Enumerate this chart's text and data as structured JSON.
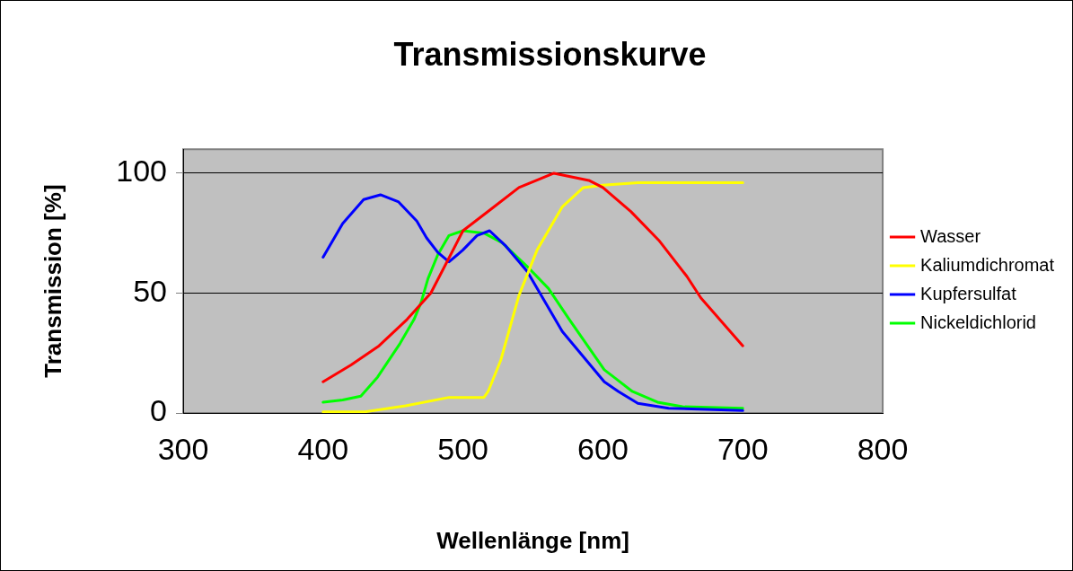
{
  "chart_data": {
    "type": "line",
    "title": "Transmissionskurve",
    "xlabel": "Wellenlänge [nm]",
    "ylabel": "Transmission [%]",
    "xlim": [
      300,
      800
    ],
    "xticks": [
      300,
      400,
      500,
      600,
      700,
      800
    ],
    "ylim": [
      0,
      110
    ],
    "yticks": [
      0,
      50,
      100
    ],
    "grid": "y",
    "legend": "right",
    "marker": "none",
    "line_style": "solid",
    "series": [
      {
        "name": "Wasser",
        "color": "#ff0000",
        "x": [
          400,
          420,
          440,
          460,
          477,
          500,
          520,
          540,
          565,
          590,
          600,
          620,
          640,
          660,
          670,
          700
        ],
        "values": [
          13,
          20,
          28,
          39,
          50,
          76,
          85,
          94,
          100,
          97,
          94,
          84,
          72,
          57,
          48,
          28
        ]
      },
      {
        "name": "Kaliumdichromat",
        "color": "#ffff00",
        "x": [
          400,
          430,
          459,
          490,
          500,
          515,
          518,
          527,
          540,
          553,
          571,
          586,
          600,
          625,
          700
        ],
        "values": [
          0.5,
          0.5,
          3,
          6.5,
          6.5,
          6.5,
          9,
          22,
          49,
          68,
          86,
          94,
          95,
          96,
          96
        ]
      },
      {
        "name": "Kupfersulfat",
        "color": "#0000ff",
        "x": [
          400,
          414,
          429,
          441,
          454,
          467,
          474,
          482,
          490,
          500,
          510,
          519,
          530,
          546,
          571,
          601,
          611,
          625,
          647,
          700
        ],
        "values": [
          65,
          79,
          89,
          91,
          88,
          80,
          73,
          67,
          63,
          68,
          74,
          76,
          70,
          59,
          34,
          13,
          9,
          4,
          2,
          1
        ]
      },
      {
        "name": "Nickeldichlorid",
        "color": "#00ff00",
        "x": [
          400,
          414,
          427,
          439,
          455,
          465,
          470,
          475,
          482,
          490,
          500,
          515,
          528,
          546,
          561,
          576,
          601,
          610,
          621,
          639,
          657,
          700
        ],
        "values": [
          4.5,
          5.4,
          7,
          15,
          29,
          39,
          46,
          56,
          66,
          74,
          76,
          75,
          71,
          61,
          52,
          39,
          18,
          14,
          9,
          4.5,
          2.6,
          2
        ]
      }
    ]
  }
}
